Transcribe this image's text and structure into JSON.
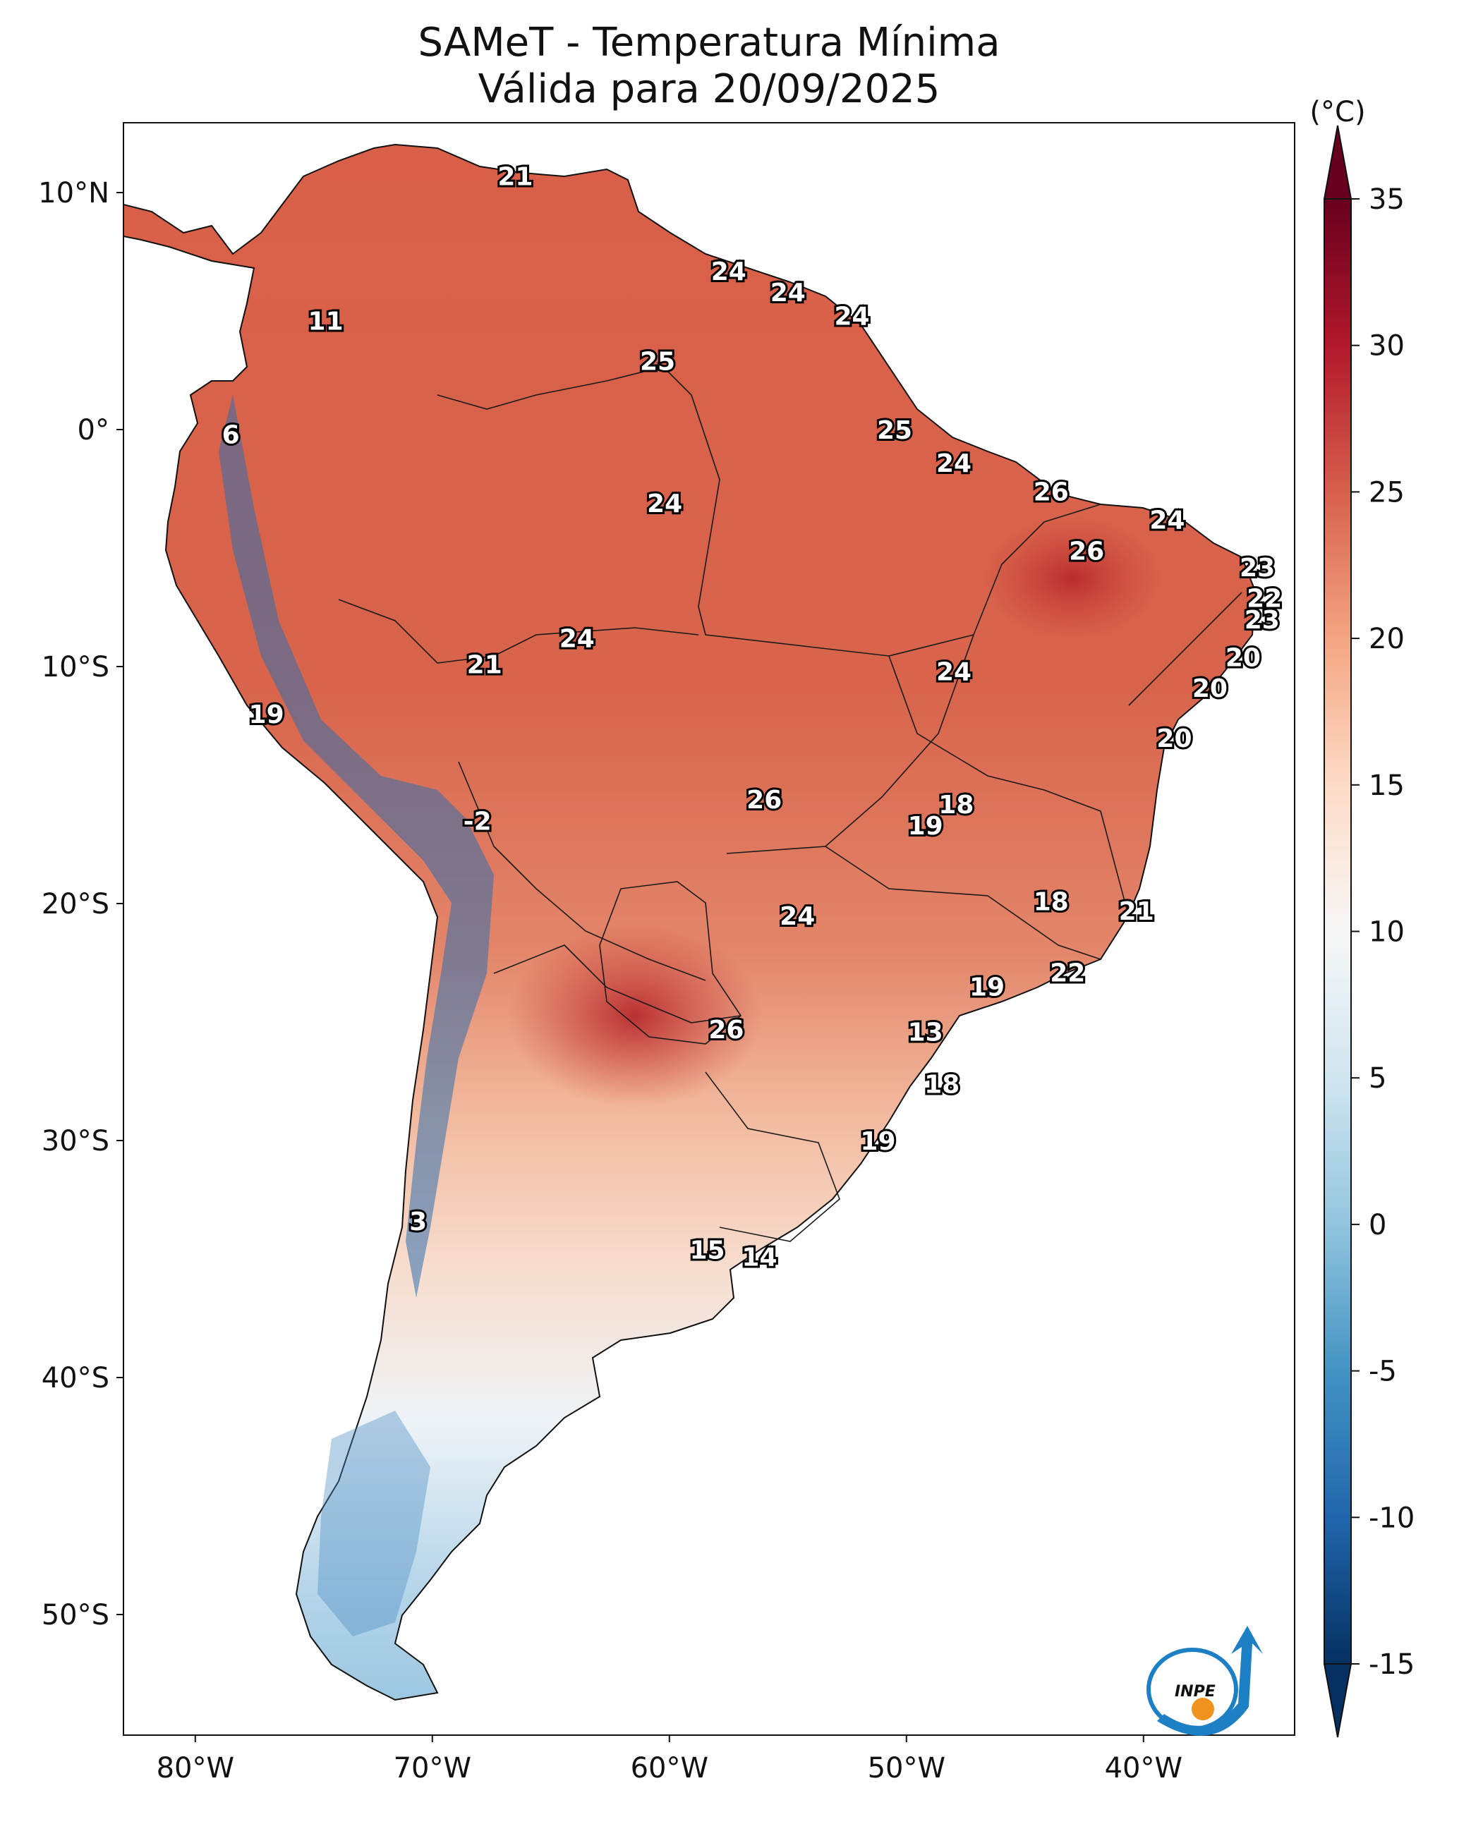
{
  "title_line1": "SAMeT - Temperatura Mínima",
  "title_line2": "Válida para 20/09/2025",
  "colorbar": {
    "unit": "(°C)",
    "min": -15,
    "max": 35,
    "ticks": [
      "35",
      "30",
      "25",
      "20",
      "15",
      "10",
      "5",
      "0",
      "-5",
      "-10",
      "-15"
    ]
  },
  "axes": {
    "lat_labels": [
      "10°N",
      "0°",
      "10°S",
      "20°S",
      "30°S",
      "40°S",
      "50°S"
    ],
    "lon_labels": [
      "80°W",
      "70°W",
      "60°W",
      "50°W",
      "40°W"
    ]
  },
  "logo_text": "INPE",
  "station_values": [
    {
      "label": "21",
      "lon": -66.5,
      "lat": 10.7
    },
    {
      "label": "11",
      "lon": -74.5,
      "lat": 4.6
    },
    {
      "label": "6",
      "lon": -78.5,
      "lat": -0.2
    },
    {
      "label": "24",
      "lon": -57.5,
      "lat": 6.7
    },
    {
      "label": "24",
      "lon": -55.0,
      "lat": 5.8
    },
    {
      "label": "24",
      "lon": -52.3,
      "lat": 4.8
    },
    {
      "label": "25",
      "lon": -60.5,
      "lat": 2.9
    },
    {
      "label": "25",
      "lon": -50.5,
      "lat": 0.0
    },
    {
      "label": "24",
      "lon": -48.0,
      "lat": -1.4
    },
    {
      "label": "24",
      "lon": -60.2,
      "lat": -3.1
    },
    {
      "label": "26",
      "lon": -43.9,
      "lat": -2.6
    },
    {
      "label": "24",
      "lon": -39.0,
      "lat": -3.8
    },
    {
      "label": "26",
      "lon": -42.4,
      "lat": -5.1
    },
    {
      "label": "23",
      "lon": -35.2,
      "lat": -5.8
    },
    {
      "label": "22",
      "lon": -34.9,
      "lat": -7.1
    },
    {
      "label": "23",
      "lon": -35.0,
      "lat": -8.0
    },
    {
      "label": "20",
      "lon": -35.8,
      "lat": -9.6
    },
    {
      "label": "20",
      "lon": -37.2,
      "lat": -10.9
    },
    {
      "label": "20",
      "lon": -38.7,
      "lat": -13.0
    },
    {
      "label": "24",
      "lon": -63.9,
      "lat": -8.8
    },
    {
      "label": "21",
      "lon": -67.8,
      "lat": -9.9
    },
    {
      "label": "24",
      "lon": -48.0,
      "lat": -10.2
    },
    {
      "label": "19",
      "lon": -77.0,
      "lat": -12.0
    },
    {
      "label": "26",
      "lon": -56.0,
      "lat": -15.6
    },
    {
      "label": "18",
      "lon": -47.9,
      "lat": -15.8
    },
    {
      "label": "19",
      "lon": -49.2,
      "lat": -16.7
    },
    {
      "label": "-2",
      "lon": -68.1,
      "lat": -16.5
    },
    {
      "label": "24",
      "lon": -54.6,
      "lat": -20.5
    },
    {
      "label": "18",
      "lon": -43.9,
      "lat": -19.9
    },
    {
      "label": "21",
      "lon": -40.3,
      "lat": -20.3
    },
    {
      "label": "22",
      "lon": -43.2,
      "lat": -22.9
    },
    {
      "label": "19",
      "lon": -46.6,
      "lat": -23.5
    },
    {
      "label": "26",
      "lon": -57.6,
      "lat": -25.3
    },
    {
      "label": "13",
      "lon": -49.2,
      "lat": -25.4
    },
    {
      "label": "18",
      "lon": -48.5,
      "lat": -27.6
    },
    {
      "label": "19",
      "lon": -51.2,
      "lat": -30.0
    },
    {
      "label": "3",
      "lon": -70.6,
      "lat": -33.4
    },
    {
      "label": "15",
      "lon": -58.4,
      "lat": -34.6
    },
    {
      "label": "14",
      "lon": -56.2,
      "lat": -34.9
    }
  ]
}
